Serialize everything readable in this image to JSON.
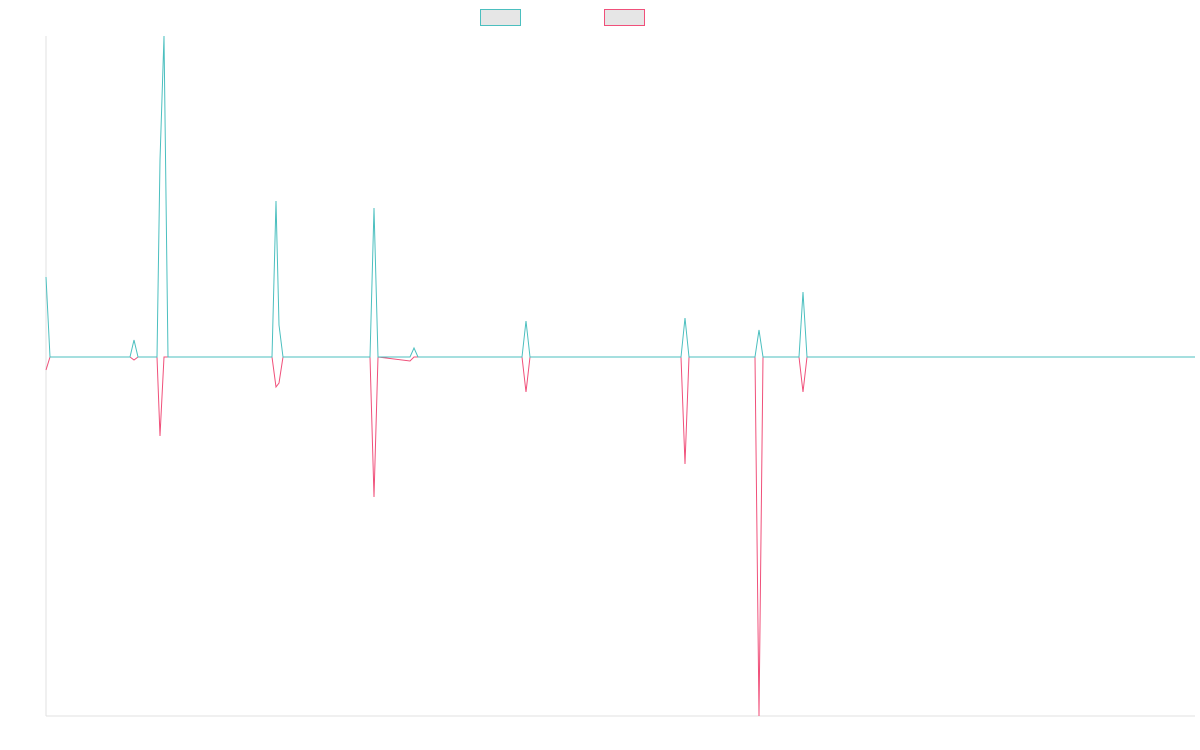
{
  "chart_data": {
    "type": "line",
    "x": [
      0,
      4,
      84,
      88,
      92,
      111,
      114,
      118,
      122,
      226,
      230,
      233,
      237,
      324,
      328,
      332,
      364,
      368,
      372,
      476,
      480,
      484,
      635,
      639,
      643,
      709,
      713,
      717,
      753,
      757,
      761,
      1149
    ],
    "series": [
      {
        "color": "#f0507a",
        "values": [
          -13,
          0,
          0,
          -3,
          0,
          0,
          -79,
          0,
          0,
          0,
          -30,
          -26,
          0,
          0,
          -140,
          0,
          -4,
          0,
          0,
          0,
          -35,
          0,
          0,
          -107,
          0,
          0,
          -359,
          0,
          0,
          -35,
          0,
          0
        ]
      },
      {
        "color": "#4bbfbf",
        "values": [
          80,
          0,
          0,
          17,
          0,
          0,
          197,
          321,
          0,
          0,
          156,
          32,
          0,
          0,
          149,
          0,
          0,
          9,
          0,
          0,
          36,
          0,
          0,
          39,
          0,
          0,
          27,
          0,
          0,
          65,
          0,
          0
        ]
      }
    ],
    "legend_order": [
      1,
      0
    ],
    "xlim": [
      0,
      1149
    ],
    "ylim": [
      -359,
      321
    ]
  }
}
